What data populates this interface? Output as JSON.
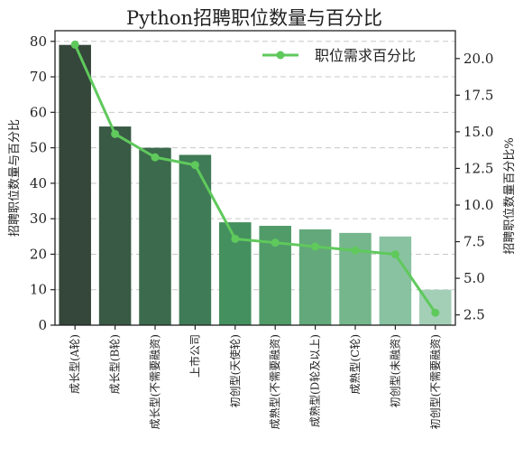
{
  "chart_data": {
    "type": "bar+line",
    "title": "Python招聘职位数量与百分比",
    "categories": [
      "成长型(A轮)",
      "成长型(B轮)",
      "成长型(不需要融资)",
      "上市公司",
      "初创型(天使轮)",
      "成熟型(不需要融资)",
      "成熟型(D轮及以上)",
      "成熟型(C轮)",
      "初创型(未融资)",
      "初创型(不需要融资)"
    ],
    "bar_series": {
      "values": [
        79,
        56,
        50,
        48,
        29,
        28,
        27,
        26,
        25,
        10
      ],
      "colors": [
        "#35463a",
        "#395a45",
        "#3c6a4c",
        "#3f7b56",
        "#44905f",
        "#519b69",
        "#63a87a",
        "#75b68c",
        "#89c2a1",
        "#a4cfb7"
      ]
    },
    "line_series": {
      "name": "职位需求百分比",
      "values": [
        20.95,
        14.85,
        13.26,
        12.73,
        7.69,
        7.43,
        7.16,
        6.9,
        6.63,
        2.65
      ],
      "color": "#5fc95c"
    },
    "ylabel_left": "招聘职位数量与百分比",
    "ylabel_right": "招聘职位数量百分比%",
    "ylim_left": [
      0,
      83
    ],
    "yticks_left": [
      0,
      10,
      20,
      30,
      40,
      50,
      60,
      70,
      80
    ],
    "ylim_right": [
      1.8,
      21.9
    ],
    "yticks_right": [
      2.5,
      5.0,
      7.5,
      10.0,
      12.5,
      15.0,
      17.5,
      20.0
    ],
    "grid": true,
    "legend_position": "top-right"
  }
}
